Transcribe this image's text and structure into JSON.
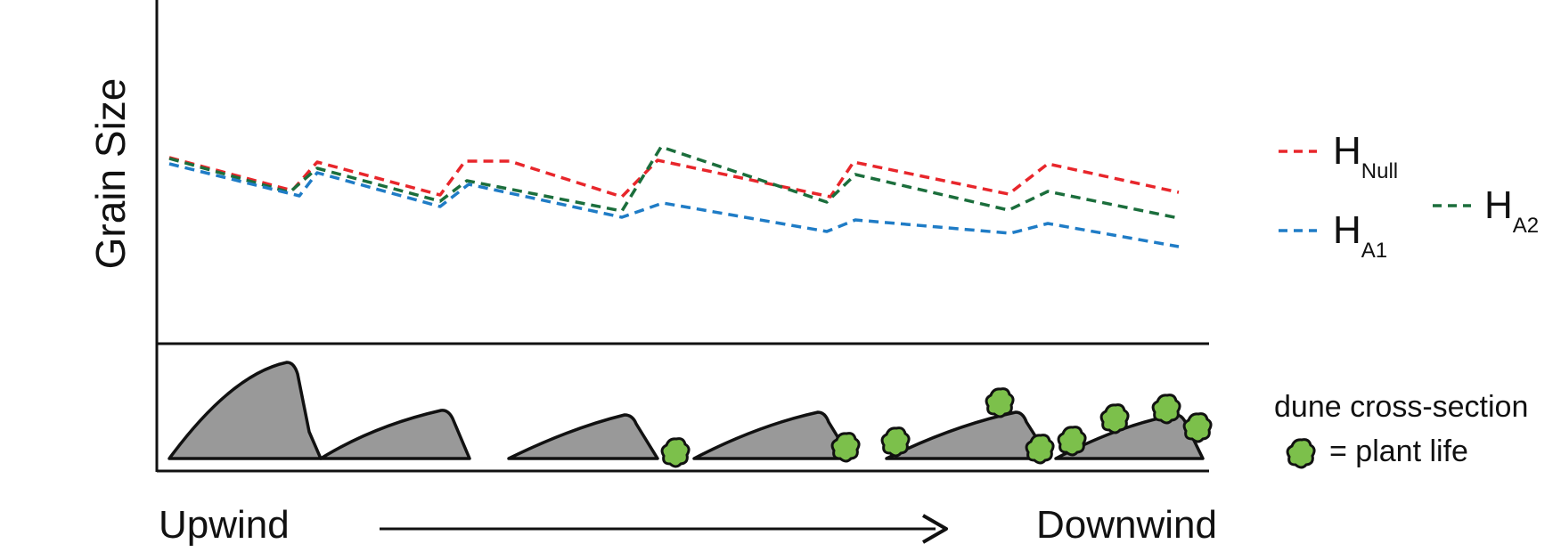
{
  "diagram": {
    "y_axis_label": "Grain Size",
    "x_start_label": "Upwind",
    "x_end_label": "Downwind",
    "colors": {
      "null": "#e8262b",
      "a1": "#1f7cc6",
      "a2": "#1b6e3c",
      "dune": "#999999",
      "plant": "#7cc04b"
    }
  },
  "legend": {
    "null": {
      "main": "H",
      "sub": "Null"
    },
    "a1": {
      "main": "H",
      "sub": "A1"
    },
    "a2": {
      "main": "H",
      "sub": "A2"
    },
    "dune_caption": "dune cross-section",
    "plant_caption": "= plant life"
  },
  "chart_data": {
    "type": "line",
    "title": "",
    "xlabel": "",
    "ylabel": "Grain Size",
    "series": [
      {
        "name": "HNull",
        "color": "#e8262b"
      },
      {
        "name": "HA1",
        "color": "#1f7cc6"
      },
      {
        "name": "HA2",
        "color": "#1b6e3c"
      }
    ]
  }
}
